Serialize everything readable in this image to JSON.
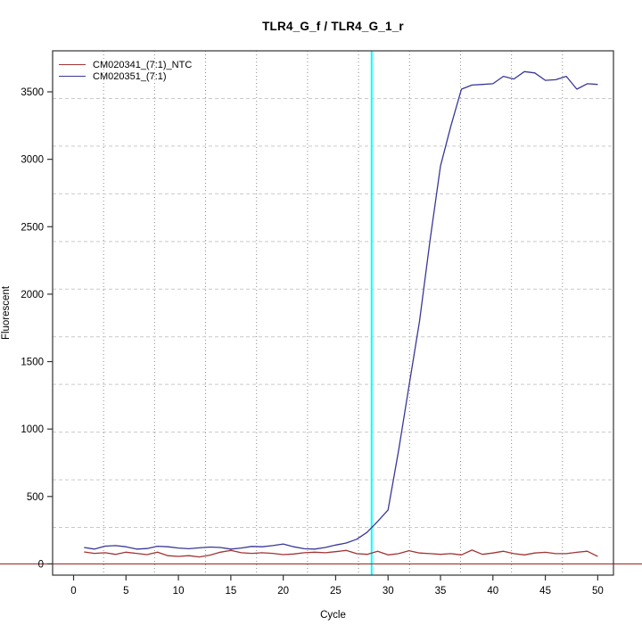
{
  "chart_data": {
    "type": "line",
    "title": "TLR4_G_f / TLR4_G_1_r",
    "xlabel": "Cycle",
    "ylabel": "Fluorescent",
    "xlim": [
      -2,
      51.5
    ],
    "ylim": [
      -83,
      3804
    ],
    "x_ticks": [
      0,
      5,
      10,
      15,
      20,
      25,
      30,
      35,
      40,
      45,
      50
    ],
    "y_ticks": [
      0,
      500,
      1000,
      1500,
      2000,
      2500,
      3000,
      3500
    ],
    "grid": {
      "divisions_x": 11,
      "divisions_y": 11,
      "vertical_color": "#8a8a8a",
      "vertical_style": "dotted",
      "horizontal_color": "#c9c9c9",
      "horizontal_style": "dashed"
    },
    "threshold_vline": {
      "x": 28.43,
      "color": "#00ffff",
      "width": 2
    },
    "baseline_hline": {
      "y": 0,
      "color": "#a13434",
      "width": 1.2
    },
    "x": [
      1,
      2,
      3,
      4,
      5,
      6,
      7,
      8,
      9,
      10,
      11,
      12,
      13,
      14,
      15,
      16,
      17,
      18,
      19,
      20,
      21,
      22,
      23,
      24,
      25,
      26,
      27,
      28,
      29,
      30,
      31,
      32,
      33,
      34,
      35,
      36,
      37,
      38,
      39,
      40,
      41,
      42,
      43,
      44,
      45,
      46,
      47,
      48,
      49,
      50
    ],
    "series": [
      {
        "name": "CM020341_(7:1)_NTC",
        "color": "#a13434",
        "values": [
          89,
          78,
          83,
          71,
          87,
          78,
          69,
          87,
          61,
          56,
          61,
          52,
          65,
          87,
          100,
          83,
          78,
          83,
          78,
          69,
          74,
          83,
          87,
          83,
          91,
          100,
          76,
          71,
          94,
          67,
          76,
          98,
          81,
          76,
          71,
          76,
          67,
          103,
          71,
          81,
          94,
          76,
          67,
          81,
          86,
          76,
          76,
          86,
          94,
          55
        ]
      },
      {
        "name": "CM020351_(7:1)",
        "color": "#383899",
        "values": [
          122,
          110,
          132,
          136,
          127,
          110,
          114,
          131,
          127,
          118,
          113,
          119,
          125,
          122,
          110,
          118,
          130,
          127,
          136,
          148,
          127,
          113,
          110,
          122,
          140,
          155,
          183,
          235,
          315,
          400,
          840,
          1320,
          1800,
          2400,
          2950,
          3250,
          3520,
          3550,
          3555,
          3560,
          3615,
          3595,
          3650,
          3640,
          3585,
          3590,
          3615,
          3520,
          3560,
          3555
        ],
        "ct_line_cycle": 28.43
      }
    ],
    "legend_position": "top-left",
    "plot_box_color": "#333333"
  }
}
